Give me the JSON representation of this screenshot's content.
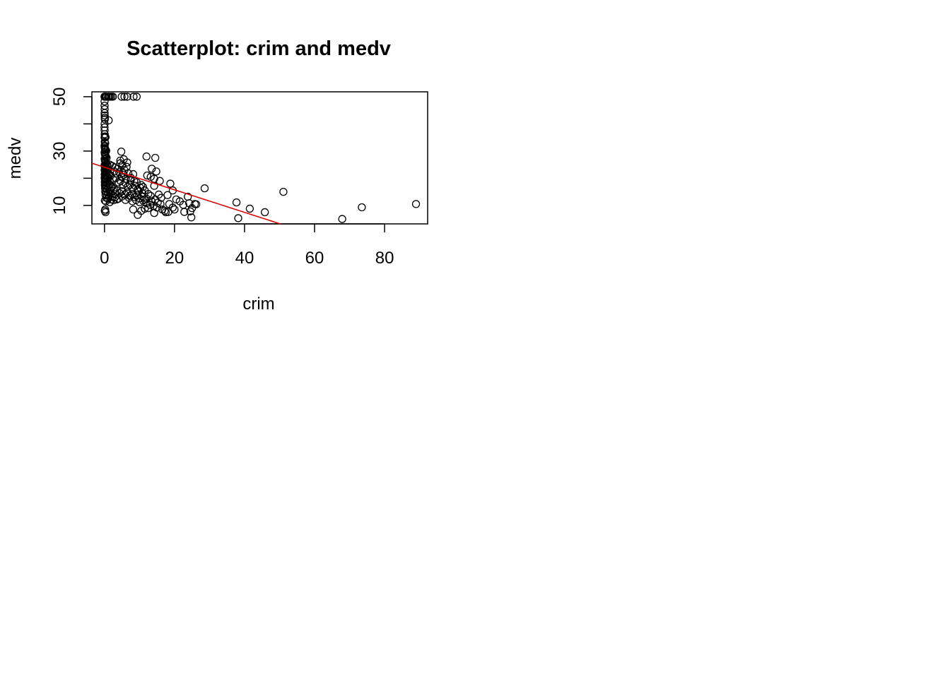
{
  "chart_data": {
    "type": "scatter",
    "title": "Scatterplot: crim and medv",
    "xlabel": "crim",
    "ylabel": "medv",
    "xlim": [
      -3.6,
      92.3
    ],
    "ylim": [
      3.2,
      51.8
    ],
    "x_ticks": [
      "0",
      "20",
      "40",
      "60",
      "80"
    ],
    "x_tick_values": [
      0,
      20,
      40,
      60,
      80
    ],
    "y_ticks": [
      "10",
      "30",
      "50"
    ],
    "y_tick_values": [
      10,
      20,
      30,
      40,
      50
    ],
    "y_labeled_values": [
      10,
      30,
      50
    ],
    "grid": false,
    "series": [
      {
        "marker": "open-circle",
        "color": "#000000",
        "points": [
          [
            0.01,
            50
          ],
          [
            0.02,
            50
          ],
          [
            0.05,
            50
          ],
          [
            0.1,
            50
          ],
          [
            0.2,
            50
          ],
          [
            0.4,
            50
          ],
          [
            0.6,
            50
          ],
          [
            1.0,
            50
          ],
          [
            1.3,
            50
          ],
          [
            1.6,
            50
          ],
          [
            2.0,
            50
          ],
          [
            2.4,
            50
          ],
          [
            4.9,
            50
          ],
          [
            5.7,
            50
          ],
          [
            6.5,
            50
          ],
          [
            8.3,
            50
          ],
          [
            9.2,
            50
          ],
          [
            0.02,
            48.3
          ],
          [
            0.03,
            46.7
          ],
          [
            0.05,
            45.4
          ],
          [
            0.04,
            44.0
          ],
          [
            0.06,
            43.1
          ],
          [
            0.08,
            42.3
          ],
          [
            0.1,
            41.7
          ],
          [
            0.03,
            40.0
          ],
          [
            1.2,
            41.3
          ],
          [
            0.02,
            38.7
          ],
          [
            0.04,
            37.6
          ],
          [
            0.06,
            36.2
          ],
          [
            0.1,
            35.4
          ],
          [
            0.3,
            35.1
          ],
          [
            0.05,
            34.9
          ],
          [
            0.08,
            33.4
          ],
          [
            0.12,
            33.1
          ],
          [
            0.2,
            32.9
          ],
          [
            0.03,
            32.0
          ],
          [
            0.06,
            31.6
          ],
          [
            0.1,
            31.1
          ],
          [
            0.2,
            30.8
          ],
          [
            0.3,
            30.5
          ],
          [
            0.5,
            30.1
          ],
          [
            0.04,
            29.6
          ],
          [
            0.09,
            29.1
          ],
          [
            0.15,
            28.7
          ],
          [
            0.25,
            28.4
          ],
          [
            0.4,
            28.0
          ],
          [
            0.6,
            27.5
          ],
          [
            0.05,
            27.1
          ],
          [
            0.12,
            26.6
          ],
          [
            0.2,
            26.2
          ],
          [
            0.35,
            25.8
          ],
          [
            0.5,
            25.3
          ],
          [
            0.8,
            25.0
          ],
          [
            0.03,
            24.8
          ],
          [
            0.07,
            24.4
          ],
          [
            0.15,
            24.1
          ],
          [
            0.3,
            23.9
          ],
          [
            0.5,
            23.6
          ],
          [
            1.0,
            23.2
          ],
          [
            0.04,
            23.0
          ],
          [
            0.1,
            22.8
          ],
          [
            0.2,
            22.6
          ],
          [
            0.4,
            22.2
          ],
          [
            0.7,
            22.0
          ],
          [
            1.2,
            21.7
          ],
          [
            0.06,
            21.4
          ],
          [
            0.15,
            21.2
          ],
          [
            0.3,
            20.9
          ],
          [
            0.6,
            20.6
          ],
          [
            1.0,
            20.3
          ],
          [
            0.05,
            20.1
          ],
          [
            0.12,
            19.9
          ],
          [
            0.25,
            19.6
          ],
          [
            0.5,
            19.4
          ],
          [
            0.9,
            19.1
          ],
          [
            1.5,
            18.9
          ],
          [
            0.08,
            18.7
          ],
          [
            0.2,
            18.5
          ],
          [
            0.4,
            18.2
          ],
          [
            0.8,
            18.0
          ],
          [
            1.4,
            17.8
          ],
          [
            0.1,
            17.5
          ],
          [
            0.3,
            17.3
          ],
          [
            0.6,
            17.1
          ],
          [
            1.1,
            16.8
          ],
          [
            2.0,
            16.6
          ],
          [
            0.15,
            16.4
          ],
          [
            0.4,
            16.1
          ],
          [
            0.8,
            15.9
          ],
          [
            1.5,
            15.6
          ],
          [
            2.5,
            15.4
          ],
          [
            0.2,
            15.1
          ],
          [
            0.5,
            14.9
          ],
          [
            1.0,
            14.6
          ],
          [
            1.8,
            14.4
          ],
          [
            3.0,
            14.1
          ],
          [
            0.3,
            13.9
          ],
          [
            0.7,
            13.6
          ],
          [
            1.3,
            13.4
          ],
          [
            2.2,
            13.1
          ],
          [
            0.5,
            12.8
          ],
          [
            1.0,
            12.5
          ],
          [
            2.0,
            12.2
          ],
          [
            0.1,
            11.8
          ],
          [
            0.4,
            11.5
          ],
          [
            1.5,
            11.2
          ],
          [
            2.6,
            11.9
          ],
          [
            3.5,
            12.2
          ],
          [
            0.2,
            8.5
          ],
          [
            0.3,
            7.5
          ],
          [
            0.1,
            8.0
          ],
          [
            1.5,
            25.0
          ],
          [
            2.2,
            24.5
          ],
          [
            3.0,
            24.0
          ],
          [
            3.8,
            23.5
          ],
          [
            4.5,
            25.5
          ],
          [
            5.1,
            24.8
          ],
          [
            5.7,
            23.0
          ],
          [
            6.3,
            24.2
          ],
          [
            2.8,
            22.5
          ],
          [
            3.5,
            21.8
          ],
          [
            4.2,
            22.2
          ],
          [
            4.8,
            20.5
          ],
          [
            5.5,
            21.3
          ],
          [
            6.1,
            19.8
          ],
          [
            6.8,
            21.8
          ],
          [
            7.5,
            19.2
          ],
          [
            8.2,
            21.5
          ],
          [
            1.8,
            21.0
          ],
          [
            2.5,
            19.5
          ],
          [
            3.2,
            20.0
          ],
          [
            4.0,
            18.5
          ],
          [
            4.6,
            19.0
          ],
          [
            5.3,
            17.5
          ],
          [
            6.0,
            18.2
          ],
          [
            6.6,
            16.8
          ],
          [
            7.3,
            17.6
          ],
          [
            8.0,
            16.2
          ],
          [
            8.8,
            17.2
          ],
          [
            9.5,
            15.8
          ],
          [
            10.2,
            16.5
          ],
          [
            2.0,
            17.0
          ],
          [
            2.8,
            16.0
          ],
          [
            3.6,
            15.5
          ],
          [
            4.3,
            14.5
          ],
          [
            5.0,
            15.2
          ],
          [
            5.8,
            14.0
          ],
          [
            6.5,
            14.8
          ],
          [
            7.2,
            13.5
          ],
          [
            7.9,
            14.2
          ],
          [
            8.6,
            13.0
          ],
          [
            9.3,
            13.8
          ],
          [
            10.0,
            12.6
          ],
          [
            10.7,
            13.4
          ],
          [
            11.4,
            12.2
          ],
          [
            3.0,
            13.0
          ],
          [
            4.0,
            12.5
          ],
          [
            5.0,
            13.3
          ],
          [
            6.0,
            12.0
          ],
          [
            7.0,
            12.8
          ],
          [
            8.0,
            11.5
          ],
          [
            9.0,
            12.0
          ],
          [
            10.0,
            11.2
          ],
          [
            11.0,
            11.8
          ],
          [
            12.0,
            10.8
          ],
          [
            4.5,
            26.5
          ],
          [
            4.8,
            29.8
          ],
          [
            5.5,
            27.0
          ],
          [
            6.5,
            25.8
          ],
          [
            5.2,
            22.0
          ],
          [
            7.5,
            20.2
          ],
          [
            8.5,
            19.0
          ],
          [
            9.2,
            18.5
          ],
          [
            10.5,
            17.5
          ],
          [
            11.0,
            16.8
          ],
          [
            9.8,
            15.2
          ],
          [
            10.8,
            14.5
          ],
          [
            11.5,
            15.5
          ],
          [
            12.5,
            14.2
          ],
          [
            13.2,
            13.5
          ],
          [
            12.0,
            12.5
          ],
          [
            13.5,
            11.5
          ],
          [
            14.5,
            12.2
          ],
          [
            15.2,
            11.0
          ],
          [
            13.0,
            10.2
          ],
          [
            14.0,
            9.8
          ],
          [
            15.0,
            9.2
          ],
          [
            16.0,
            10.5
          ],
          [
            12.5,
            9.0
          ],
          [
            11.5,
            8.8
          ],
          [
            10.5,
            8.0
          ],
          [
            9.5,
            6.5
          ],
          [
            8.2,
            8.5
          ],
          [
            14.2,
            7.2
          ],
          [
            16.5,
            8.5
          ],
          [
            17.5,
            7.5
          ],
          [
            12.0,
            28.0
          ],
          [
            14.5,
            27.5
          ],
          [
            13.5,
            23.5
          ],
          [
            14.8,
            22.5
          ],
          [
            12.2,
            21.0
          ],
          [
            13.2,
            20.5
          ],
          [
            14.2,
            19.8
          ],
          [
            15.8,
            19.0
          ],
          [
            18.8,
            18.0
          ],
          [
            14.2,
            17.2
          ],
          [
            19.5,
            15.5
          ],
          [
            15.5,
            14.0
          ],
          [
            18.0,
            13.8
          ],
          [
            16.2,
            12.8
          ],
          [
            20.5,
            12.2
          ],
          [
            21.5,
            11.5
          ],
          [
            18.5,
            10.5
          ],
          [
            22.5,
            10.2
          ],
          [
            19.5,
            9.2
          ],
          [
            20.0,
            8.5
          ],
          [
            17.2,
            8.0
          ],
          [
            18.2,
            7.6
          ],
          [
            22.8,
            7.6
          ],
          [
            24.5,
            7.8
          ],
          [
            24.2,
            10.8
          ],
          [
            25.0,
            9.0
          ],
          [
            25.8,
            10.5
          ],
          [
            23.8,
            13.2
          ],
          [
            26.2,
            10.4
          ],
          [
            24.8,
            5.6
          ],
          [
            28.6,
            16.3
          ],
          [
            37.7,
            11.1
          ],
          [
            38.2,
            5.3
          ],
          [
            41.5,
            8.8
          ],
          [
            45.8,
            7.5
          ],
          [
            51.1,
            15.0
          ],
          [
            67.9,
            5.0
          ],
          [
            73.5,
            9.3
          ],
          [
            88.98,
            10.5
          ]
        ]
      }
    ],
    "regression_line": {
      "color": "#dd0000",
      "intercept": 24.03,
      "slope": -0.415
    }
  }
}
